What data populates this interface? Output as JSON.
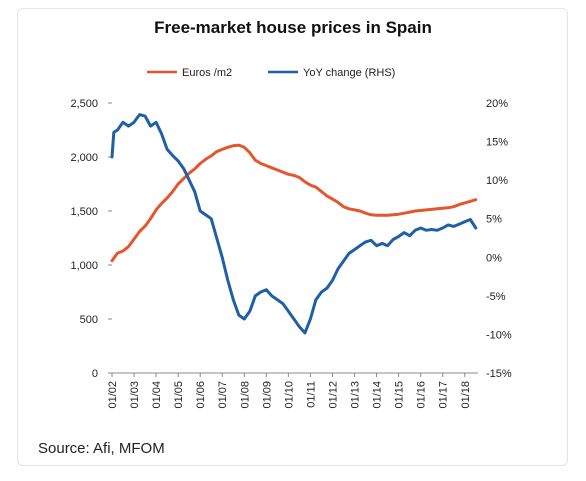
{
  "title": "Free-market house prices in Spain",
  "source": "Source: Afi, MFOM",
  "chart_data": {
    "type": "line",
    "title": "Free-market house prices in Spain",
    "x_ticks": [
      "01/02",
      "01/03",
      "01/04",
      "01/05",
      "01/06",
      "01/07",
      "01/08",
      "01/09",
      "01/10",
      "01/11",
      "01/12",
      "01/13",
      "01/14",
      "01/15",
      "01/16",
      "01/17",
      "01/18"
    ],
    "y_left": {
      "label": "",
      "range": [
        0,
        2500
      ],
      "ticks": [
        "0",
        "500",
        "1,000",
        "1,500",
        "2,000",
        "2,500"
      ],
      "tick_values": [
        0,
        500,
        1000,
        1500,
        2000,
        2500
      ]
    },
    "y_right": {
      "label": "",
      "range": [
        -15,
        20
      ],
      "ticks": [
        "-15%",
        "-10%",
        "-5%",
        "0%",
        "5%",
        "10%",
        "15%",
        "20%"
      ],
      "tick_values": [
        -15,
        -10,
        -5,
        0,
        5,
        10,
        15,
        20
      ]
    },
    "legend_position": "top",
    "grid": false,
    "series": [
      {
        "name": "Euros /m2",
        "axis": "left",
        "color": "#e4572e",
        "x": [
          2002.0,
          2002.25,
          2002.5,
          2002.75,
          2003.0,
          2003.25,
          2003.5,
          2003.75,
          2004.0,
          2004.25,
          2004.5,
          2004.75,
          2005.0,
          2005.25,
          2005.5,
          2005.75,
          2006.0,
          2006.25,
          2006.5,
          2006.75,
          2007.0,
          2007.25,
          2007.5,
          2007.75,
          2008.0,
          2008.25,
          2008.5,
          2008.75,
          2009.0,
          2009.25,
          2009.5,
          2009.75,
          2010.0,
          2010.25,
          2010.5,
          2010.75,
          2011.0,
          2011.25,
          2011.5,
          2011.75,
          2012.0,
          2012.25,
          2012.5,
          2012.75,
          2013.0,
          2013.25,
          2013.5,
          2013.75,
          2014.0,
          2014.25,
          2014.5,
          2014.75,
          2015.0,
          2015.25,
          2015.5,
          2015.75,
          2016.0,
          2016.25,
          2016.5,
          2016.75,
          2017.0,
          2017.25,
          2017.5,
          2017.75,
          2018.0,
          2018.25,
          2018.5
        ],
        "values": [
          1040,
          1110,
          1130,
          1170,
          1240,
          1310,
          1360,
          1430,
          1510,
          1570,
          1620,
          1680,
          1750,
          1800,
          1850,
          1890,
          1940,
          1980,
          2010,
          2050,
          2070,
          2090,
          2105,
          2110,
          2090,
          2040,
          1970,
          1940,
          1920,
          1900,
          1880,
          1860,
          1840,
          1830,
          1810,
          1770,
          1740,
          1720,
          1680,
          1640,
          1610,
          1580,
          1540,
          1520,
          1510,
          1500,
          1480,
          1465,
          1460,
          1460,
          1460,
          1465,
          1470,
          1480,
          1490,
          1500,
          1505,
          1510,
          1515,
          1520,
          1525,
          1530,
          1540,
          1560,
          1575,
          1590,
          1605
        ]
      },
      {
        "name": "YoY change (RHS)",
        "axis": "right",
        "color": "#1f5fa6",
        "x": [
          2002.0,
          2002.08,
          2002.25,
          2002.5,
          2002.75,
          2003.0,
          2003.25,
          2003.5,
          2003.75,
          2004.0,
          2004.25,
          2004.5,
          2004.75,
          2005.0,
          2005.25,
          2005.5,
          2005.75,
          2006.0,
          2006.25,
          2006.5,
          2006.75,
          2007.0,
          2007.25,
          2007.5,
          2007.75,
          2008.0,
          2008.25,
          2008.5,
          2008.75,
          2009.0,
          2009.25,
          2009.5,
          2009.75,
          2010.0,
          2010.25,
          2010.5,
          2010.75,
          2011.0,
          2011.25,
          2011.5,
          2011.75,
          2012.0,
          2012.25,
          2012.5,
          2012.75,
          2013.0,
          2013.25,
          2013.5,
          2013.75,
          2014.0,
          2014.25,
          2014.5,
          2014.75,
          2015.0,
          2015.25,
          2015.5,
          2015.75,
          2016.0,
          2016.25,
          2016.5,
          2016.75,
          2017.0,
          2017.25,
          2017.5,
          2017.75,
          2018.0,
          2018.25,
          2018.5
        ],
        "values": [
          13,
          16.2,
          16.5,
          17.5,
          17,
          17.5,
          18.5,
          18.3,
          17,
          17.5,
          16,
          14,
          13.2,
          12.5,
          11.5,
          10,
          8.5,
          6,
          5.5,
          5,
          2.5,
          0,
          -3,
          -5.5,
          -7.5,
          -8,
          -7,
          -5,
          -4.5,
          -4.2,
          -5,
          -5.5,
          -6,
          -7,
          -8,
          -9,
          -9.8,
          -8,
          -5.5,
          -4.5,
          -4,
          -3,
          -1.5,
          -0.5,
          0.5,
          1,
          1.5,
          2,
          2.2,
          1.5,
          1.8,
          1.5,
          2.3,
          2.7,
          3.2,
          2.8,
          3.5,
          3.8,
          3.5,
          3.6,
          3.5,
          3.8,
          4.2,
          4.0,
          4.3,
          4.6,
          4.9,
          3.8
        ]
      }
    ]
  }
}
